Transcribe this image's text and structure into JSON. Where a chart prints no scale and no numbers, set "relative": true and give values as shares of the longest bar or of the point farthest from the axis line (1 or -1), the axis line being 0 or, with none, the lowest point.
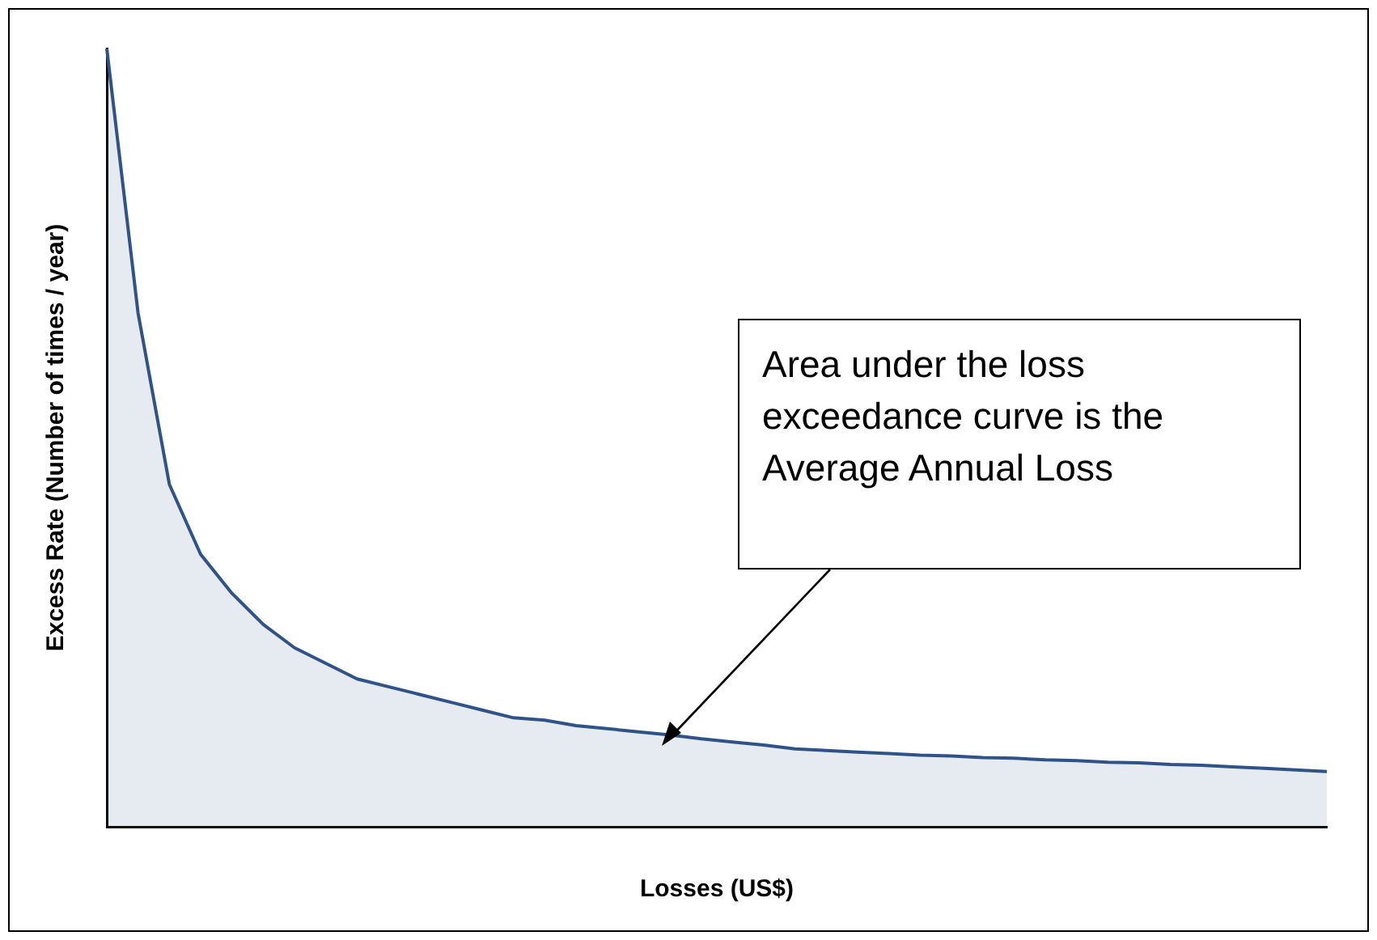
{
  "chart_data": {
    "type": "area",
    "relative": true,
    "xlabel": "Losses (US$)",
    "ylabel": "Excess Rate (Number of times / year)",
    "categories": [
      null,
      null,
      null,
      null,
      null,
      null,
      null,
      null,
      null,
      null,
      null,
      null,
      null,
      null,
      null,
      null,
      null,
      null,
      null,
      null,
      null,
      null,
      null,
      null,
      null,
      null,
      null,
      null,
      null,
      null,
      null,
      null,
      null,
      null,
      null,
      null,
      null,
      null,
      null,
      null
    ],
    "series": [
      {
        "color": "#2f5389",
        "values": [
          1.0,
          0.66,
          0.44,
          0.35,
          0.3,
          0.26,
          0.23,
          0.21,
          0.19,
          0.18,
          0.17,
          0.16,
          0.15,
          0.14,
          0.137,
          0.13,
          0.126,
          0.122,
          0.118,
          0.113,
          0.109,
          0.105,
          0.1,
          0.098,
          0.096,
          0.094,
          0.092,
          0.091,
          0.089,
          0.088,
          0.086,
          0.085,
          0.083,
          0.082,
          0.08,
          0.079,
          0.077,
          0.075,
          0.073,
          0.071
        ]
      }
    ],
    "annotations": [
      "Area under the loss exceedance curve is the Average Annual Loss"
    ],
    "grid": false,
    "legend": false,
    "marker": "none",
    "line_style": "solid"
  }
}
